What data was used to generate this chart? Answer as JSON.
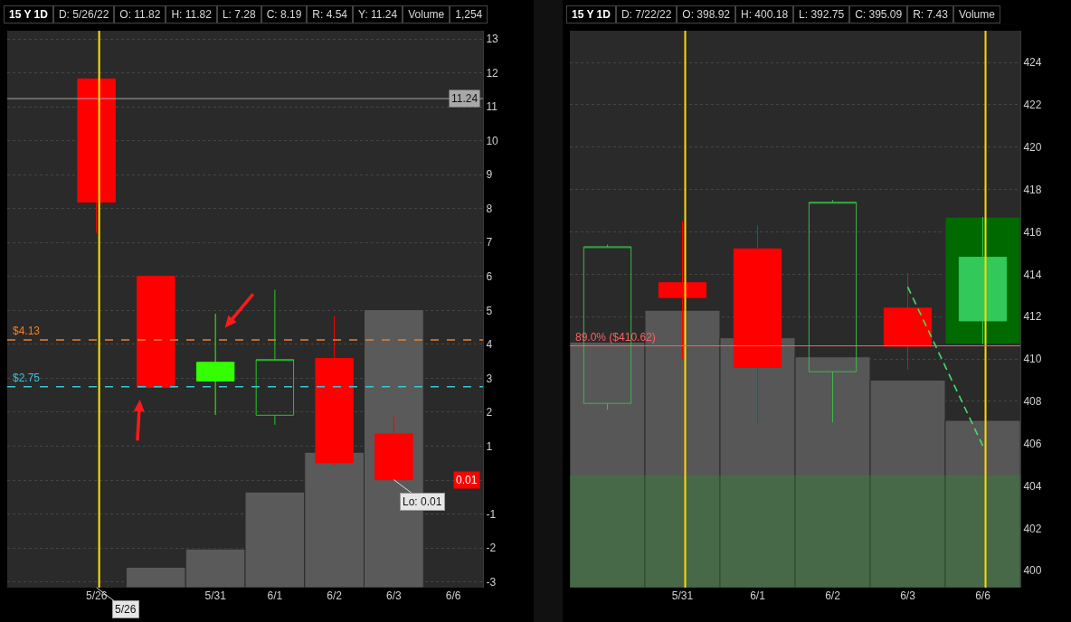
{
  "chart_data": [
    {
      "type": "candlestick",
      "title": "15 Y 1D",
      "annotations": [
        "D: 5/26/22",
        "O: 11.82",
        "H: 11.82",
        "L: 7.28",
        "C: 8.19",
        "R: 4.54",
        "Y: 11.24",
        "Volume",
        "1,254",
        {
          "text": "11.24",
          "y": 11.24
        },
        {
          "text": "0.01",
          "y": 0.01
        },
        {
          "text": "Lo: 0.01",
          "x": "6/3",
          "y": 0.01
        },
        {
          "text": "5/26",
          "x": "5/26",
          "y": -3.17
        }
      ],
      "categories": [
        null,
        "5/26",
        null,
        "5/31",
        "6/1",
        "6/2",
        "6/3",
        "6/6"
      ],
      "ohlc": [
        null,
        [
          11.82,
          11.82,
          7.28,
          8.19
        ],
        [
          6.0,
          6.0,
          2.73,
          2.73
        ],
        [
          3.47,
          4.9,
          1.92,
          2.92
        ],
        [
          1.91,
          5.61,
          1.63,
          3.55
        ],
        [
          3.58,
          4.84,
          0.43,
          0.51
        ],
        [
          1.36,
          1.88,
          0.01,
          0.01
        ],
        null
      ],
      "colors": [
        null,
        "#ff0000",
        "#ff0000",
        "#33ff00",
        "#22cc22",
        "#ff0000",
        "#ff0000",
        null
      ],
      "series": [
        {
          "type": "bar",
          "color": "#5a5a5a",
          "base": [
            null,
            null,
            -3.17,
            -3.17,
            -3.17,
            -3.17,
            -3.17,
            null
          ],
          "values": [
            null,
            null,
            0.6,
            1.14,
            2.82,
            3.99,
            8.19,
            null
          ]
        }
      ],
      "ylim": [
        -3.17,
        13.24
      ],
      "yticks": [
        -3,
        -2,
        -1,
        {
          "value": 0,
          "label": null
        },
        1,
        2,
        3,
        4,
        5,
        6,
        7,
        8,
        9,
        10,
        11,
        12,
        13
      ],
      "grid": "y",
      "ref_lines": [
        {
          "axis": "x",
          "value": "5/26",
          "color": "#ffe600"
        },
        {
          "axis": "y",
          "value": 11.24,
          "color": "#a8a8a8"
        },
        {
          "axis": "y",
          "value": 4.13,
          "label": "$4.13",
          "color": "#f07f2a",
          "line_style": "dashed"
        },
        {
          "axis": "y",
          "value": 2.75,
          "label": "$2.75",
          "color": "#3cc4d8",
          "line_style": "dashed"
        }
      ]
    },
    {
      "type": "candlestick",
      "title": "15 Y 1D",
      "annotations": [
        "D: 7/22/22",
        "O: 398.92",
        "H: 400.18",
        "L: 392.75",
        "C: 395.09",
        "R: 7.43",
        "Volume"
      ],
      "categories": [
        null,
        "5/31",
        "6/1",
        "6/2",
        "6/3",
        "6/6"
      ],
      "ohlc": [
        [
          407.9,
          415.4,
          407.6,
          415.3
        ],
        [
          413.6,
          416.5,
          410.0,
          412.9
        ],
        [
          415.2,
          416.3,
          406.9,
          409.6
        ],
        [
          409.4,
          417.5,
          407.0,
          417.4
        ],
        [
          412.4,
          414.05,
          409.5,
          410.6
        ],
        [
          414.8,
          416.7,
          410.7,
          411.8
        ]
      ],
      "colors": [
        "#3cb94a",
        "#ff0000",
        "#ff0000",
        "#3cb94a",
        "#ff0000",
        "#33c95a"
      ],
      "series": [
        {
          "type": "bar",
          "color": "#575757",
          "base": [
            399.2,
            399.2,
            399.2,
            399.2,
            399.2,
            399.2
          ],
          "values": [
            11.6,
            13.1,
            11.8,
            10.9,
            9.8,
            7.9
          ]
        },
        {
          "type": "bar",
          "color": "#006a00",
          "base": [
            null,
            null,
            null,
            null,
            null,
            410.7
          ],
          "values": [
            null,
            null,
            null,
            null,
            null,
            6.0
          ]
        },
        {
          "type": "line",
          "x": [
            "6/3",
            "6/6"
          ],
          "values": [
            413.4,
            405.9
          ],
          "color": "#44dd66",
          "line_style": "dashed"
        }
      ],
      "ylim": [
        399.2,
        425.5
      ],
      "yticks": [
        400,
        402,
        404,
        406,
        408,
        410,
        412,
        414,
        416,
        418,
        420,
        422,
        424
      ],
      "grid": "y",
      "ref_lines": [
        {
          "axis": "x",
          "value": "5/31",
          "color": "#ffd700"
        },
        {
          "axis": "x",
          "value": "6/6",
          "color": "#ffd700"
        },
        {
          "axis": "y",
          "value": 410.62,
          "label": "89.0% ($410.62)",
          "color": "#ff6060"
        }
      ],
      "bands": [
        {
          "axis": "y",
          "from": 399.2,
          "to": 404.5,
          "color": "#2e8b2e"
        }
      ]
    }
  ]
}
